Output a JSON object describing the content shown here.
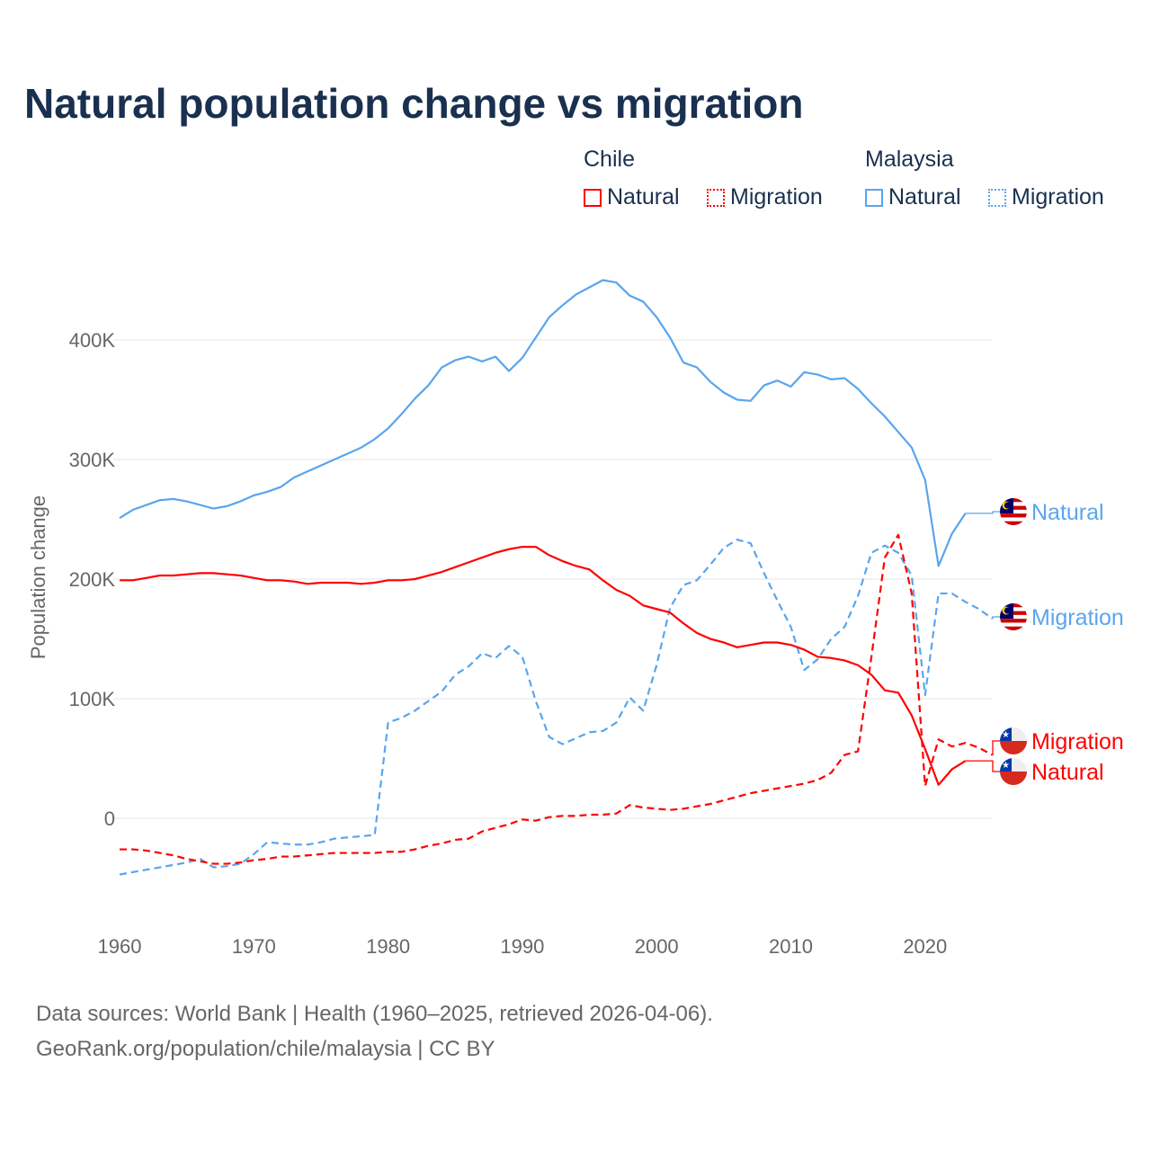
{
  "title": "Natural population change vs migration",
  "legend": {
    "groups": [
      {
        "name": "Chile",
        "items": [
          {
            "label": "Natural",
            "style": "solid"
          },
          {
            "label": "Migration",
            "style": "dotted"
          }
        ],
        "color": "#ff0000"
      },
      {
        "name": "Malaysia",
        "items": [
          {
            "label": "Natural",
            "style": "solid"
          },
          {
            "label": "Migration",
            "style": "dotted"
          }
        ],
        "color": "#5aa5ec"
      }
    ]
  },
  "source": {
    "line1": "Data sources: World Bank | Health (1960–2025, retrieved 2026-04-06).",
    "line2": "GeoRank.org/population/chile/malaysia | CC BY"
  },
  "chart_data": {
    "type": "line",
    "title": "Natural population change vs migration",
    "xlabel": "",
    "ylabel": "Population change",
    "xlim": [
      1960,
      2025
    ],
    "ylim": [
      -90000,
      470000
    ],
    "x_ticks": [
      1960,
      1970,
      1980,
      1990,
      2000,
      2010,
      2020
    ],
    "x_tick_labels": [
      "1960",
      "1970",
      "1980",
      "1990",
      "2000",
      "2010",
      "2020"
    ],
    "y_ticks": [
      0,
      100000,
      200000,
      300000,
      400000
    ],
    "y_tick_labels": [
      "0",
      "100K",
      "200K",
      "300K",
      "400K"
    ],
    "grid": true,
    "series": [
      {
        "name": "Malaysia Natural",
        "label": "Natural",
        "country": "Malaysia",
        "color": "#5aa5ec",
        "dash": false,
        "start": 1960,
        "values_k": [
          251,
          258,
          262,
          266,
          267,
          265,
          262,
          259,
          261,
          265,
          270,
          273,
          277,
          285,
          290,
          295,
          300,
          305,
          310,
          317,
          326,
          338,
          351,
          362,
          377,
          383,
          386,
          382,
          386,
          374,
          385,
          402,
          419,
          429,
          438,
          444,
          450,
          448,
          437,
          432,
          419,
          402,
          381,
          377,
          365,
          356,
          350,
          349,
          362,
          366,
          361,
          373,
          371,
          367,
          368,
          359,
          347,
          336,
          323,
          310,
          283,
          211,
          238,
          255
        ]
      },
      {
        "name": "Malaysia Migration",
        "label": "Migration",
        "country": "Malaysia",
        "color": "#5aa5ec",
        "dash": true,
        "start": 1960,
        "values_k": [
          -47,
          -45,
          -43,
          -41,
          -39,
          -37,
          -34,
          -41,
          -40,
          -38,
          -30,
          -20,
          -21,
          -22,
          -22,
          -20,
          -17,
          -16,
          -15,
          -14,
          80,
          84,
          90,
          98,
          106,
          120,
          127,
          138,
          134,
          144,
          135,
          98,
          68,
          62,
          67,
          72,
          73,
          80,
          101,
          90,
          128,
          176,
          195,
          199,
          212,
          226,
          233,
          230,
          205,
          182,
          160,
          124,
          133,
          150,
          160,
          186,
          222,
          228,
          222,
          203,
          103,
          188,
          188,
          181,
          175,
          167
        ]
      },
      {
        "name": "Chile Migration",
        "label": "Migration",
        "country": "Chile",
        "color": "#ff0000",
        "dash": true,
        "start": 1960,
        "values_k": [
          -26,
          -26,
          -27,
          -29,
          -31,
          -34,
          -36,
          -38,
          -38,
          -37,
          -35,
          -34,
          -32,
          -32,
          -31,
          -30,
          -29,
          -29,
          -29,
          -29,
          -28,
          -28,
          -26,
          -23,
          -21,
          -18,
          -17,
          -11,
          -8,
          -5,
          -1,
          -2,
          1,
          2,
          2,
          3,
          3,
          4,
          11,
          9,
          8,
          7,
          8,
          10,
          12,
          15,
          18,
          21,
          23,
          25,
          27,
          29,
          32,
          38,
          53,
          56,
          135,
          218,
          237,
          188,
          27,
          66,
          60,
          63,
          59,
          53
        ]
      },
      {
        "name": "Chile Natural",
        "label": "Natural",
        "country": "Chile",
        "color": "#ff0000",
        "dash": false,
        "start": 1960,
        "values_k": [
          199,
          199,
          201,
          203,
          203,
          204,
          205,
          205,
          204,
          203,
          201,
          199,
          199,
          198,
          196,
          197,
          197,
          197,
          196,
          197,
          199,
          199,
          200,
          203,
          206,
          210,
          214,
          218,
          222,
          225,
          227,
          227,
          220,
          215,
          211,
          208,
          199,
          191,
          186,
          178,
          175,
          172,
          163,
          155,
          150,
          147,
          143,
          145,
          147,
          147,
          145,
          141,
          135,
          134,
          132,
          128,
          120,
          107,
          105,
          86,
          58,
          28,
          41,
          48
        ]
      }
    ]
  }
}
